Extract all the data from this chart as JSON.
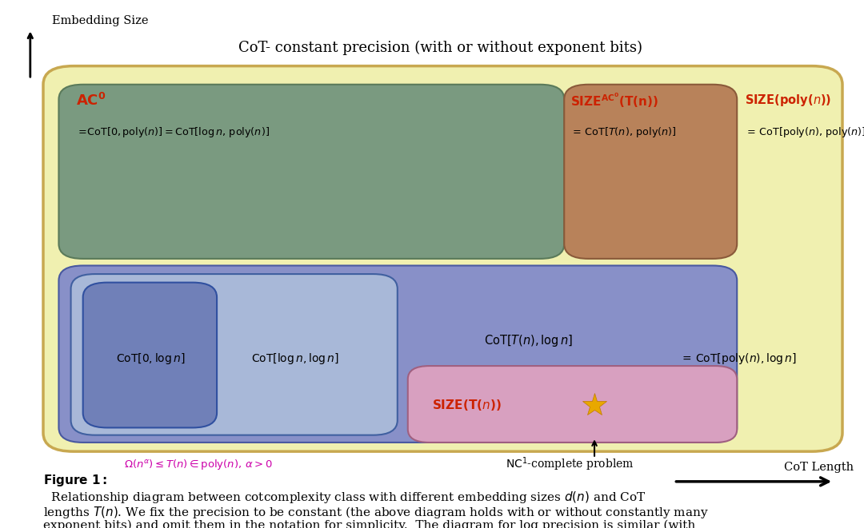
{
  "title": "CoT- constant precision (with or without exponent bits)",
  "bg_outer": "#f0f0b0",
  "bg_outer_border": "#c8a850",
  "color_green_rect": "#7a9a80",
  "color_brown_rect": "#b8825a",
  "color_blue_rect": "#8890c8",
  "color_blue_inner": "#a8b8d8",
  "color_blue_dark": "#7080b8",
  "color_pink_rect": "#d8a0c0",
  "color_red_text": "#cc2200",
  "color_magenta_text": "#cc00aa",
  "color_star": "#e8a800",
  "ylabel": "Embedding Size",
  "xlabel": "CoT Length"
}
